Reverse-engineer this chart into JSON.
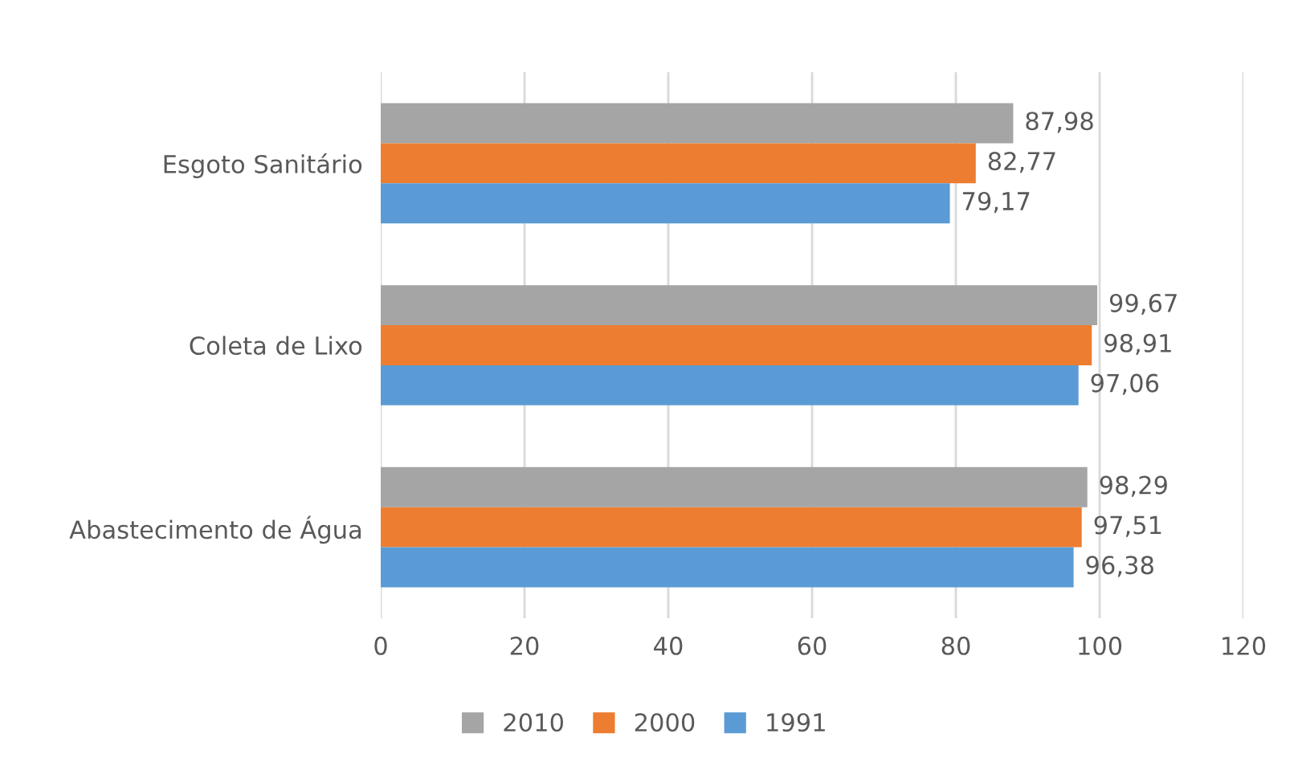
{
  "chart_data": {
    "type": "bar",
    "orientation": "horizontal",
    "categories": [
      "Esgoto Sanitário",
      "Coleta de Lixo",
      "Abastecimento de Água"
    ],
    "series": [
      {
        "name": "2010",
        "color": "#a5a5a5",
        "values": [
          87.98,
          99.67,
          98.29
        ],
        "value_labels": [
          "87,98",
          "99,67",
          "98,29"
        ]
      },
      {
        "name": "2000",
        "color": "#ed7d31",
        "values": [
          82.77,
          98.91,
          97.51
        ],
        "value_labels": [
          "82,77",
          "98,91",
          "97,51"
        ]
      },
      {
        "name": "1991",
        "color": "#5b9bd5",
        "values": [
          79.17,
          97.06,
          96.38
        ],
        "value_labels": [
          "79,17",
          "97,06",
          "96,38"
        ]
      }
    ],
    "xlim": [
      0,
      120
    ],
    "xticks": [
      0,
      20,
      40,
      60,
      80,
      100,
      120
    ],
    "grid": "x",
    "legend": "bottom"
  }
}
